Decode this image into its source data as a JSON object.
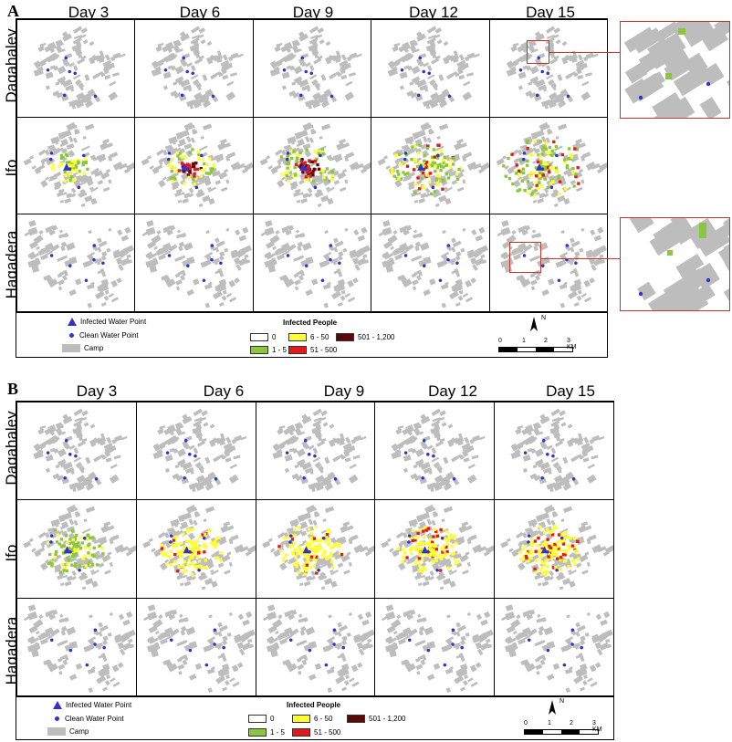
{
  "panels": [
    {
      "letter": "A",
      "days": [
        "Day 3",
        "Day 6",
        "Day 9",
        "Day 12",
        "Day 15"
      ],
      "camps": [
        "Dagahaley",
        "Ifo",
        "Hagadera"
      ]
    },
    {
      "letter": "B",
      "days": [
        "Day 3",
        "Day 6",
        "Day 9",
        "Day 12",
        "Day 15"
      ],
      "camps": [
        "Dagahaley",
        "Ifo",
        "Hagadera"
      ]
    }
  ],
  "legend": {
    "infected_water_point": "Infected Water Point",
    "clean_water_point": "Clean Water Point",
    "camp": "Camp",
    "infected_people_title": "Infected People",
    "classes": [
      {
        "label": "0",
        "color": "#ffffff"
      },
      {
        "label": "6 - 50",
        "color": "#ffff33"
      },
      {
        "label": "501 - 1,200",
        "color": "#5a0a0a"
      },
      {
        "label": "1 - 5",
        "color": "#8cc63e"
      },
      {
        "label": "51 - 500",
        "color": "#e31a1c"
      }
    ],
    "north": "N",
    "scale_ticks": [
      "0",
      "1",
      "2",
      "3 KM"
    ]
  },
  "colors": {
    "camp": "#bdbdbd",
    "water_point": "#3333cc",
    "inset_border": "#c0392b"
  }
}
